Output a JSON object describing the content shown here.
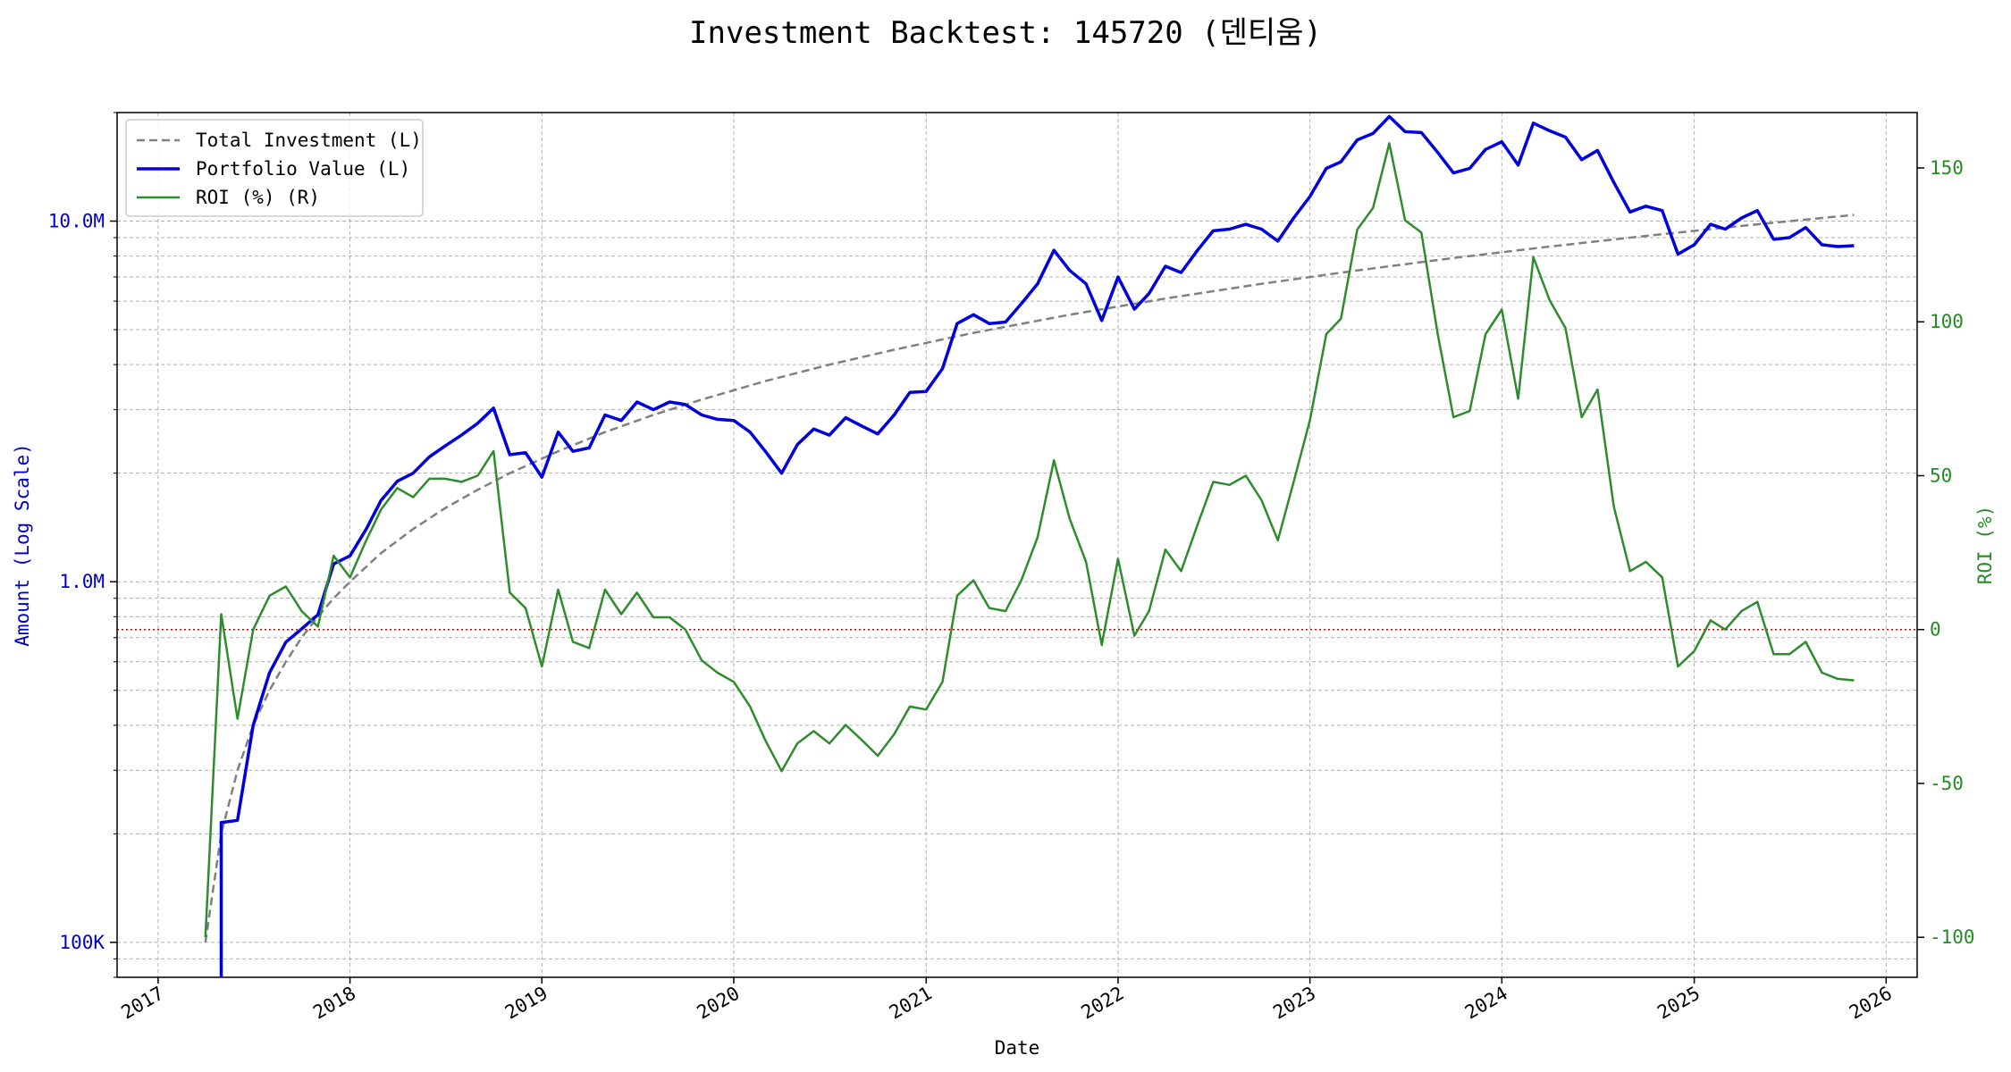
{
  "chart_data": {
    "type": "line",
    "title": "Investment Backtest: 145720 (덴티움)",
    "xlabel": "Date",
    "ylabel_left": "Amount (Log Scale)",
    "ylabel_right": "ROI (%)",
    "left_scale": "log",
    "left_ylim": [
      80000,
      20000000
    ],
    "right_ylim": [
      -113,
      168
    ],
    "xlim": [
      "2016-10-15",
      "2026-03-01"
    ],
    "x_ticks": [
      "2017",
      "2018",
      "2019",
      "2020",
      "2021",
      "2022",
      "2023",
      "2024",
      "2025",
      "2026"
    ],
    "left_ticks": [
      {
        "value": 100000,
        "label": "100K"
      },
      {
        "value": 1000000,
        "label": "1.0M"
      },
      {
        "value": 10000000,
        "label": "10.0M"
      }
    ],
    "right_ticks": [
      -100,
      -50,
      0,
      50,
      100,
      150
    ],
    "grid": true,
    "legend_position": "top-left",
    "reference_line": {
      "axis": "right",
      "value": 0,
      "style": "dotted",
      "color": "#cc0000"
    },
    "colors": {
      "total": "#808080",
      "portfolio": "#0000dd",
      "roi": "#2e8b2e",
      "left_axis": "#0000cc",
      "right_axis": "#228b22"
    },
    "series": [
      {
        "name": "Total Investment (L)",
        "axis": "left",
        "style": "dashed",
        "points": [
          [
            "2017-04-01",
            100000
          ],
          [
            "2017-05-01",
            200000
          ],
          [
            "2017-06-01",
            300000
          ],
          [
            "2017-07-01",
            400000
          ],
          [
            "2017-08-01",
            500000
          ],
          [
            "2017-09-01",
            600000
          ],
          [
            "2017-10-01",
            700000
          ],
          [
            "2017-11-01",
            800000
          ],
          [
            "2017-12-01",
            900000
          ],
          [
            "2018-01-01",
            1000000
          ],
          [
            "2018-03-01",
            1200000
          ],
          [
            "2018-05-01",
            1400000
          ],
          [
            "2018-07-01",
            1600000
          ],
          [
            "2018-09-01",
            1800000
          ],
          [
            "2018-11-01",
            2000000
          ],
          [
            "2019-02-01",
            2300000
          ],
          [
            "2019-05-01",
            2600000
          ],
          [
            "2019-08-01",
            2900000
          ],
          [
            "2019-11-01",
            3200000
          ],
          [
            "2020-03-01",
            3600000
          ],
          [
            "2020-07-01",
            4000000
          ],
          [
            "2020-11-01",
            4400000
          ],
          [
            "2021-04-01",
            4900000
          ],
          [
            "2021-10-01",
            5500000
          ],
          [
            "2022-04-01",
            6100000
          ],
          [
            "2022-10-01",
            6700000
          ],
          [
            "2023-04-01",
            7300000
          ],
          [
            "2023-10-01",
            7900000
          ],
          [
            "2024-04-01",
            8500000
          ],
          [
            "2024-10-01",
            9100000
          ],
          [
            "2025-04-01",
            9700000
          ],
          [
            "2025-10-01",
            10300000
          ],
          [
            "2025-11-01",
            10400000
          ]
        ]
      },
      {
        "name": "Portfolio Value (L)",
        "axis": "left",
        "style": "solid",
        "points": [
          [
            "2017-05-01",
            50000
          ],
          [
            "2017-05-01",
            215000
          ],
          [
            "2017-06-01",
            218000
          ],
          [
            "2017-07-01",
            400000
          ],
          [
            "2017-08-01",
            560000
          ],
          [
            "2017-09-01",
            680000
          ],
          [
            "2017-10-01",
            740000
          ],
          [
            "2017-11-01",
            810000
          ],
          [
            "2017-12-01",
            1120000
          ],
          [
            "2018-01-01",
            1180000
          ],
          [
            "2018-02-01",
            1400000
          ],
          [
            "2018-03-01",
            1680000
          ],
          [
            "2018-04-01",
            1900000
          ],
          [
            "2018-05-01",
            2000000
          ],
          [
            "2018-06-01",
            2220000
          ],
          [
            "2018-07-01",
            2380000
          ],
          [
            "2018-08-01",
            2550000
          ],
          [
            "2018-09-01",
            2750000
          ],
          [
            "2018-10-01",
            3030000
          ],
          [
            "2018-11-01",
            2250000
          ],
          [
            "2018-12-01",
            2280000
          ],
          [
            "2019-01-01",
            1950000
          ],
          [
            "2019-02-01",
            2600000
          ],
          [
            "2019-03-01",
            2300000
          ],
          [
            "2019-04-01",
            2350000
          ],
          [
            "2019-05-01",
            2900000
          ],
          [
            "2019-06-01",
            2800000
          ],
          [
            "2019-07-01",
            3150000
          ],
          [
            "2019-08-01",
            3000000
          ],
          [
            "2019-09-01",
            3150000
          ],
          [
            "2019-10-01",
            3100000
          ],
          [
            "2019-11-01",
            2900000
          ],
          [
            "2019-12-01",
            2820000
          ],
          [
            "2020-01-01",
            2800000
          ],
          [
            "2020-02-01",
            2600000
          ],
          [
            "2020-03-01",
            2300000
          ],
          [
            "2020-04-01",
            2000000
          ],
          [
            "2020-05-01",
            2400000
          ],
          [
            "2020-06-01",
            2650000
          ],
          [
            "2020-07-01",
            2550000
          ],
          [
            "2020-08-01",
            2850000
          ],
          [
            "2020-09-01",
            2700000
          ],
          [
            "2020-10-01",
            2570000
          ],
          [
            "2020-11-01",
            2900000
          ],
          [
            "2020-12-01",
            3350000
          ],
          [
            "2021-01-01",
            3370000
          ],
          [
            "2021-02-01",
            3900000
          ],
          [
            "2021-03-01",
            5200000
          ],
          [
            "2021-04-01",
            5500000
          ],
          [
            "2021-05-01",
            5200000
          ],
          [
            "2021-06-01",
            5250000
          ],
          [
            "2021-07-01",
            5900000
          ],
          [
            "2021-08-01",
            6700000
          ],
          [
            "2021-09-01",
            8300000
          ],
          [
            "2021-10-01",
            7300000
          ],
          [
            "2021-11-01",
            6700000
          ],
          [
            "2021-12-01",
            5300000
          ],
          [
            "2022-01-01",
            7000000
          ],
          [
            "2022-02-01",
            5700000
          ],
          [
            "2022-03-01",
            6300000
          ],
          [
            "2022-04-01",
            7500000
          ],
          [
            "2022-05-01",
            7200000
          ],
          [
            "2022-06-01",
            8300000
          ],
          [
            "2022-07-01",
            9400000
          ],
          [
            "2022-08-01",
            9500000
          ],
          [
            "2022-09-01",
            9800000
          ],
          [
            "2022-10-01",
            9500000
          ],
          [
            "2022-11-01",
            8800000
          ],
          [
            "2022-12-01",
            10200000
          ],
          [
            "2023-01-01",
            11700000
          ],
          [
            "2023-02-01",
            14000000
          ],
          [
            "2023-03-01",
            14600000
          ],
          [
            "2023-04-01",
            16800000
          ],
          [
            "2023-05-01",
            17500000
          ],
          [
            "2023-06-01",
            19500000
          ],
          [
            "2023-07-01",
            17700000
          ],
          [
            "2023-08-01",
            17600000
          ],
          [
            "2023-09-01",
            15500000
          ],
          [
            "2023-10-01",
            13600000
          ],
          [
            "2023-11-01",
            14000000
          ],
          [
            "2023-12-01",
            15800000
          ],
          [
            "2024-01-01",
            16600000
          ],
          [
            "2024-02-01",
            14300000
          ],
          [
            "2024-03-01",
            18700000
          ],
          [
            "2024-04-01",
            17800000
          ],
          [
            "2024-05-01",
            17100000
          ],
          [
            "2024-06-01",
            14800000
          ],
          [
            "2024-07-01",
            15700000
          ],
          [
            "2024-08-01",
            12800000
          ],
          [
            "2024-09-01",
            10600000
          ],
          [
            "2024-10-01",
            11000000
          ],
          [
            "2024-11-01",
            10700000
          ],
          [
            "2024-12-01",
            8100000
          ],
          [
            "2025-01-01",
            8600000
          ],
          [
            "2025-02-01",
            9800000
          ],
          [
            "2025-03-01",
            9500000
          ],
          [
            "2025-04-01",
            10200000
          ],
          [
            "2025-05-01",
            10700000
          ],
          [
            "2025-06-01",
            8900000
          ],
          [
            "2025-07-01",
            9000000
          ],
          [
            "2025-08-01",
            9600000
          ],
          [
            "2025-09-01",
            8600000
          ],
          [
            "2025-10-01",
            8500000
          ],
          [
            "2025-11-01",
            8550000
          ]
        ]
      },
      {
        "name": "ROI (%) (R)",
        "axis": "right",
        "style": "solid",
        "points": [
          [
            "2017-04-01",
            -100
          ],
          [
            "2017-05-01",
            5
          ],
          [
            "2017-06-01",
            -29
          ],
          [
            "2017-07-01",
            0
          ],
          [
            "2017-08-01",
            11
          ],
          [
            "2017-09-01",
            14
          ],
          [
            "2017-10-01",
            6
          ],
          [
            "2017-11-01",
            1
          ],
          [
            "2017-12-01",
            24
          ],
          [
            "2018-01-01",
            17
          ],
          [
            "2018-02-01",
            29
          ],
          [
            "2018-03-01",
            39
          ],
          [
            "2018-04-01",
            46
          ],
          [
            "2018-05-01",
            43
          ],
          [
            "2018-06-01",
            49
          ],
          [
            "2018-07-01",
            49
          ],
          [
            "2018-08-01",
            48
          ],
          [
            "2018-09-01",
            50
          ],
          [
            "2018-10-01",
            58
          ],
          [
            "2018-11-01",
            12
          ],
          [
            "2018-12-01",
            7
          ],
          [
            "2019-01-01",
            -12
          ],
          [
            "2019-02-01",
            13
          ],
          [
            "2019-03-01",
            -4
          ],
          [
            "2019-04-01",
            -6
          ],
          [
            "2019-05-01",
            13
          ],
          [
            "2019-06-01",
            5
          ],
          [
            "2019-07-01",
            12
          ],
          [
            "2019-08-01",
            4
          ],
          [
            "2019-09-01",
            4
          ],
          [
            "2019-10-01",
            0
          ],
          [
            "2019-11-01",
            -10
          ],
          [
            "2019-12-01",
            -14
          ],
          [
            "2020-01-01",
            -17
          ],
          [
            "2020-02-01",
            -25
          ],
          [
            "2020-03-01",
            -36
          ],
          [
            "2020-04-01",
            -46
          ],
          [
            "2020-05-01",
            -37
          ],
          [
            "2020-06-01",
            -33
          ],
          [
            "2020-07-01",
            -37
          ],
          [
            "2020-08-01",
            -31
          ],
          [
            "2020-09-01",
            -36
          ],
          [
            "2020-10-01",
            -41
          ],
          [
            "2020-11-01",
            -34
          ],
          [
            "2020-12-01",
            -25
          ],
          [
            "2021-01-01",
            -26
          ],
          [
            "2021-02-01",
            -17
          ],
          [
            "2021-03-01",
            11
          ],
          [
            "2021-04-01",
            16
          ],
          [
            "2021-05-01",
            7
          ],
          [
            "2021-06-01",
            6
          ],
          [
            "2021-07-01",
            16
          ],
          [
            "2021-08-01",
            30
          ],
          [
            "2021-09-01",
            55
          ],
          [
            "2021-10-01",
            36
          ],
          [
            "2021-11-01",
            22
          ],
          [
            "2021-12-01",
            -5
          ],
          [
            "2022-01-01",
            23
          ],
          [
            "2022-02-01",
            -2
          ],
          [
            "2022-03-01",
            6
          ],
          [
            "2022-04-01",
            26
          ],
          [
            "2022-05-01",
            19
          ],
          [
            "2022-06-01",
            34
          ],
          [
            "2022-07-01",
            48
          ],
          [
            "2022-08-01",
            47
          ],
          [
            "2022-09-01",
            50
          ],
          [
            "2022-10-01",
            42
          ],
          [
            "2022-11-01",
            29
          ],
          [
            "2022-12-01",
            48
          ],
          [
            "2023-01-01",
            68
          ],
          [
            "2023-02-01",
            96
          ],
          [
            "2023-03-01",
            101
          ],
          [
            "2023-04-01",
            130
          ],
          [
            "2023-05-01",
            137
          ],
          [
            "2023-06-01",
            158
          ],
          [
            "2023-07-01",
            133
          ],
          [
            "2023-08-01",
            129
          ],
          [
            "2023-09-01",
            96
          ],
          [
            "2023-10-01",
            69
          ],
          [
            "2023-11-01",
            71
          ],
          [
            "2023-12-01",
            96
          ],
          [
            "2024-01-01",
            104
          ],
          [
            "2024-02-01",
            75
          ],
          [
            "2024-03-01",
            121
          ],
          [
            "2024-04-01",
            107
          ],
          [
            "2024-05-01",
            98
          ],
          [
            "2024-06-01",
            69
          ],
          [
            "2024-07-01",
            78
          ],
          [
            "2024-08-01",
            40
          ],
          [
            "2024-09-01",
            19
          ],
          [
            "2024-10-01",
            22
          ],
          [
            "2024-11-01",
            17
          ],
          [
            "2024-12-01",
            -12
          ],
          [
            "2025-01-01",
            -7
          ],
          [
            "2025-02-01",
            3
          ],
          [
            "2025-03-01",
            0
          ],
          [
            "2025-04-01",
            6
          ],
          [
            "2025-05-01",
            9
          ],
          [
            "2025-06-01",
            -8
          ],
          [
            "2025-07-01",
            -8
          ],
          [
            "2025-08-01",
            -4
          ],
          [
            "2025-09-01",
            -14
          ],
          [
            "2025-10-01",
            -16
          ],
          [
            "2025-11-01",
            -16.5
          ]
        ]
      }
    ]
  }
}
